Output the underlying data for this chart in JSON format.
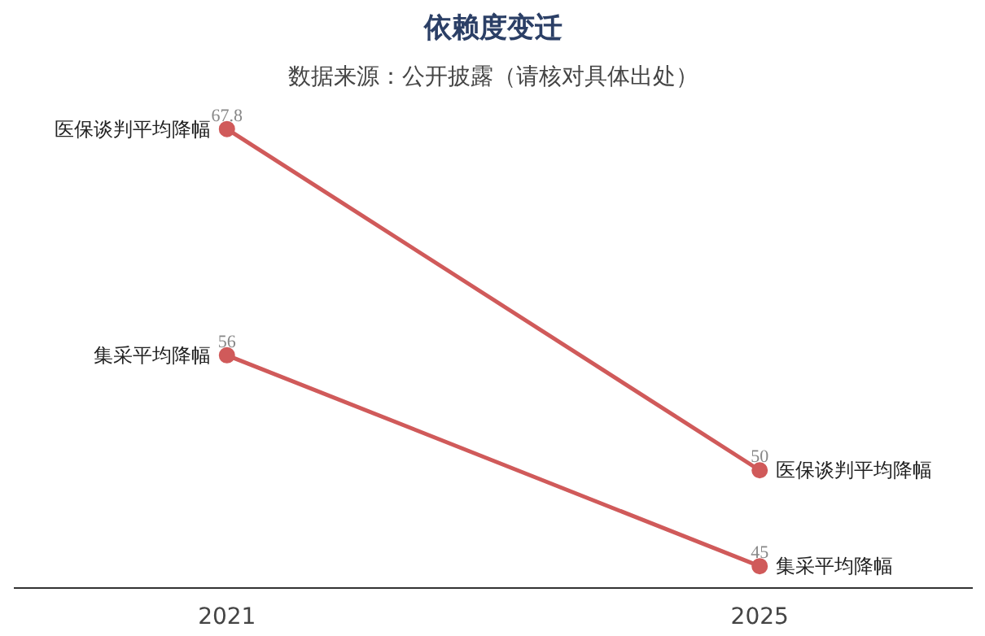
{
  "chart_data": {
    "type": "line",
    "title": "依赖度变迁",
    "subtitle": "数据来源：公开披露（请核对具体出处）",
    "categories": [
      "2021",
      "2025"
    ],
    "series": [
      {
        "name": "医保谈判平均降幅",
        "color": "#d05a5a",
        "values": [
          67.8,
          50
        ]
      },
      {
        "name": "集采平均降幅",
        "color": "#d05a5a",
        "values": [
          56,
          45
        ]
      }
    ],
    "tick_labels": "x",
    "grid": false,
    "marker": "circle",
    "line_style": "solid",
    "data_labels": true
  }
}
